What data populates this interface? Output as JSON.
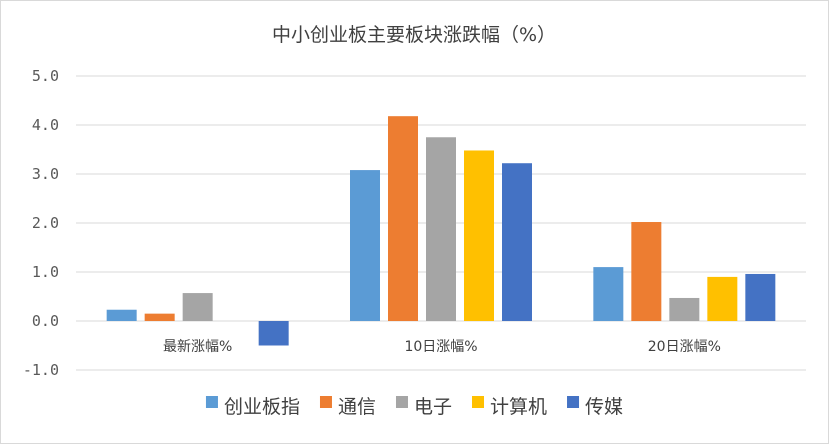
{
  "chart_data": {
    "type": "bar",
    "title": "中小创业板主要板块涨跌幅（%）",
    "categories": [
      "最新涨幅%",
      "10日涨幅%",
      "20日涨幅%"
    ],
    "series": [
      {
        "name": "创业板指",
        "color": "#5b9bd5",
        "values": [
          0.23,
          3.08,
          1.1
        ]
      },
      {
        "name": "通信",
        "color": "#ed7d31",
        "values": [
          0.15,
          4.18,
          2.02
        ]
      },
      {
        "name": "电子",
        "color": "#a5a5a5",
        "values": [
          0.57,
          3.75,
          0.47
        ]
      },
      {
        "name": "计算机",
        "color": "#ffc000",
        "values": [
          0.0,
          3.48,
          0.9
        ]
      },
      {
        "name": "传媒",
        "color": "#4472c4",
        "values": [
          -0.5,
          3.22,
          0.96
        ]
      }
    ],
    "ylim": [
      -1.0,
      5.0
    ],
    "yticks": [
      "5.0",
      "4.0",
      "3.0",
      "2.0",
      "1.0",
      "0.0",
      "-1.0"
    ],
    "ytick_values": [
      5,
      4,
      3,
      2,
      1,
      0,
      -1
    ],
    "grid": true,
    "legend_position": "bottom"
  }
}
